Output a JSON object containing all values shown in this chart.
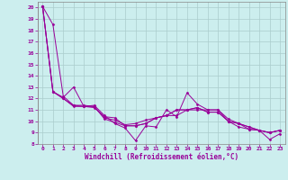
{
  "background_color": "#cceeee",
  "grid_color": "#aacccc",
  "line_color": "#990099",
  "marker_color": "#990099",
  "xlabel": "Windchill (Refroidissement éolien,°C)",
  "xlim": [
    -0.5,
    23.5
  ],
  "ylim": [
    8,
    20.5
  ],
  "xticks": [
    0,
    1,
    2,
    3,
    4,
    5,
    6,
    7,
    8,
    9,
    10,
    11,
    12,
    13,
    14,
    15,
    16,
    17,
    18,
    19,
    20,
    21,
    22,
    23
  ],
  "yticks": [
    8,
    9,
    10,
    11,
    12,
    13,
    14,
    15,
    16,
    17,
    18,
    19,
    20
  ],
  "series": [
    [
      20.1,
      12.6,
      12.1,
      13.0,
      11.3,
      11.4,
      10.5,
      9.8,
      9.4,
      8.3,
      9.6,
      9.5,
      11.0,
      10.4,
      12.5,
      11.5,
      11.0,
      11.0,
      10.0,
      9.5,
      9.3,
      9.2,
      8.4,
      8.9
    ],
    [
      20.1,
      12.6,
      12.0,
      11.3,
      11.3,
      11.2,
      10.4,
      10.3,
      9.6,
      9.6,
      9.8,
      10.3,
      10.5,
      11.0,
      11.0,
      11.2,
      10.8,
      10.8,
      10.0,
      9.8,
      9.5,
      9.2,
      9.0,
      9.2
    ],
    [
      20.1,
      18.5,
      12.2,
      11.4,
      11.4,
      11.3,
      10.3,
      10.1,
      9.7,
      9.8,
      10.1,
      10.3,
      10.5,
      10.5,
      11.0,
      11.0,
      11.0,
      11.0,
      10.2,
      9.8,
      9.3,
      9.2,
      9.0,
      9.2
    ],
    [
      20.1,
      12.6,
      12.0,
      11.4,
      11.3,
      11.3,
      10.2,
      9.9,
      9.6,
      9.6,
      9.8,
      10.3,
      10.5,
      11.0,
      11.0,
      11.2,
      10.8,
      10.8,
      10.0,
      9.8,
      9.5,
      9.2,
      9.0,
      9.2
    ]
  ],
  "axis_fontsize": 5.5,
  "tick_fontsize": 4.5
}
